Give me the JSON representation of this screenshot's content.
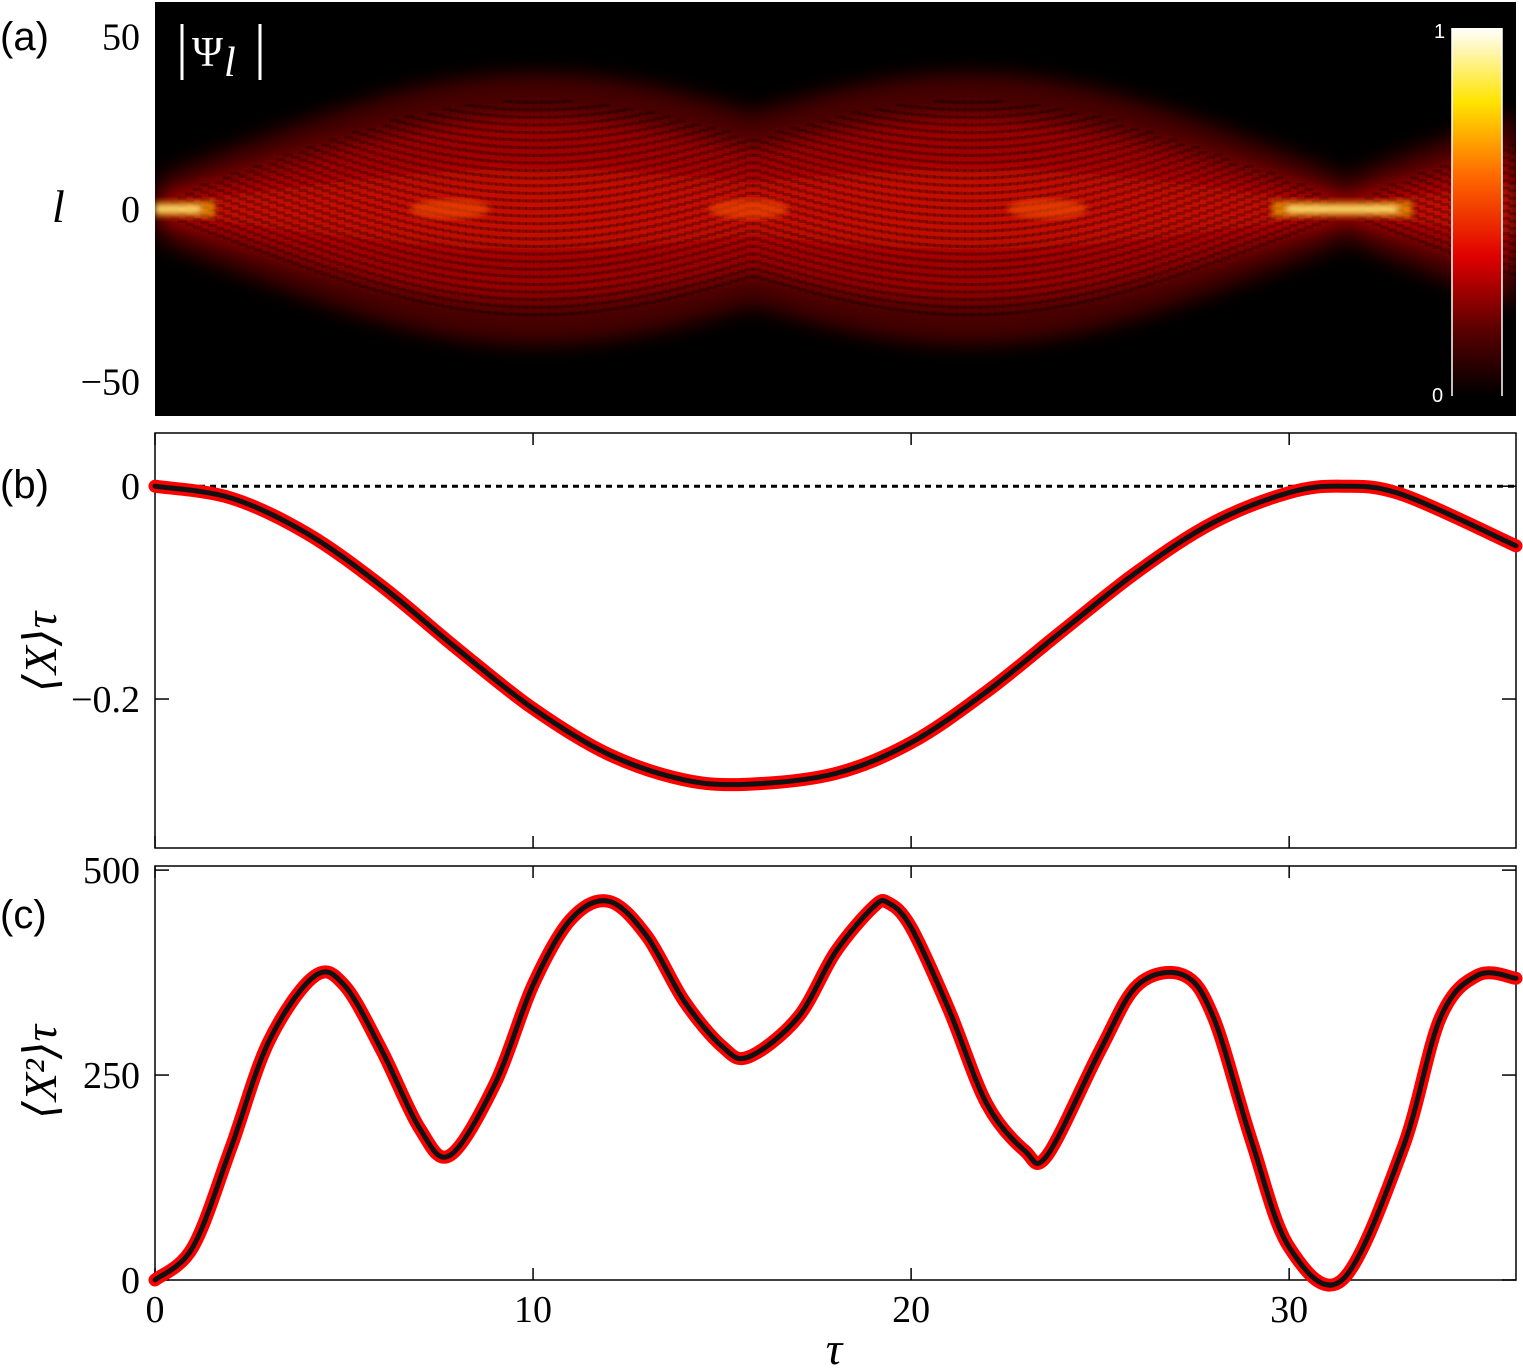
{
  "chart_data": [
    {
      "panel": "(a)",
      "type": "heatmap",
      "title": "|Ψ_l|",
      "title_text": "Ψ",
      "title_subscript": "l",
      "ylabel": "l",
      "xlim": [
        0,
        36
      ],
      "ylim": [
        -60,
        60
      ],
      "yticks": [
        50,
        0,
        -50
      ],
      "ytick_labels": [
        "50",
        "0",
        "−50"
      ],
      "colorbar": {
        "min": 0,
        "max": 1,
        "labels": [
          "1",
          "0"
        ],
        "colormap": "hot"
      },
      "features": {
        "focus_times": [
          0,
          31.4
        ],
        "lobe_minima_times": [
          7.8,
          23.6
        ],
        "waist_time": 15.7
      }
    },
    {
      "panel": "(b)",
      "type": "line",
      "ylabel": "⟨X⟩τ",
      "xlim": [
        0,
        36
      ],
      "ylim": [
        -0.34,
        0.05
      ],
      "yticks": [
        0,
        -0.2
      ],
      "ytick_labels": [
        "0",
        "−0.2"
      ],
      "reference_line": {
        "y": 0,
        "style": "dotted"
      },
      "series": [
        {
          "x": [
            0,
            2,
            4,
            6,
            8,
            10,
            12,
            14,
            15.7,
            18,
            20,
            22,
            24,
            26,
            28,
            30,
            31.4,
            33,
            36
          ],
          "y": [
            0,
            -0.011,
            -0.044,
            -0.094,
            -0.153,
            -0.209,
            -0.252,
            -0.276,
            -0.28,
            -0.27,
            -0.241,
            -0.193,
            -0.136,
            -0.08,
            -0.034,
            -0.006,
            0,
            -0.008,
            -0.056
          ]
        }
      ]
    },
    {
      "panel": "(c)",
      "type": "line",
      "xlabel": "τ",
      "ylabel": "⟨X²⟩τ",
      "xlim": [
        0,
        36
      ],
      "ylim": [
        0,
        505
      ],
      "yticks": [
        0,
        250,
        500
      ],
      "ytick_labels": [
        "0",
        "250",
        "500"
      ],
      "xticks": [
        0,
        10,
        20,
        30
      ],
      "xtick_labels": [
        "0",
        "10",
        "20",
        "30"
      ],
      "series": [
        {
          "x": [
            0,
            1,
            2,
            3,
            4.2,
            5,
            6,
            7,
            7.8,
            9,
            10,
            11,
            12,
            13,
            14,
            15,
            15.7,
            17,
            18,
            19,
            19.4,
            20,
            21,
            22,
            23,
            23.6,
            25,
            26,
            27.2,
            28,
            29,
            30,
            31.4,
            33,
            34,
            35,
            36
          ],
          "y": [
            0,
            40,
            160,
            290,
            370,
            360,
            280,
            185,
            152,
            240,
            360,
            440,
            462,
            420,
            340,
            285,
            272,
            320,
            400,
            455,
            460,
            430,
            330,
            215,
            158,
            152,
            280,
            360,
            372,
            320,
            170,
            40,
            0,
            160,
            320,
            372,
            368
          ]
        }
      ]
    }
  ]
}
